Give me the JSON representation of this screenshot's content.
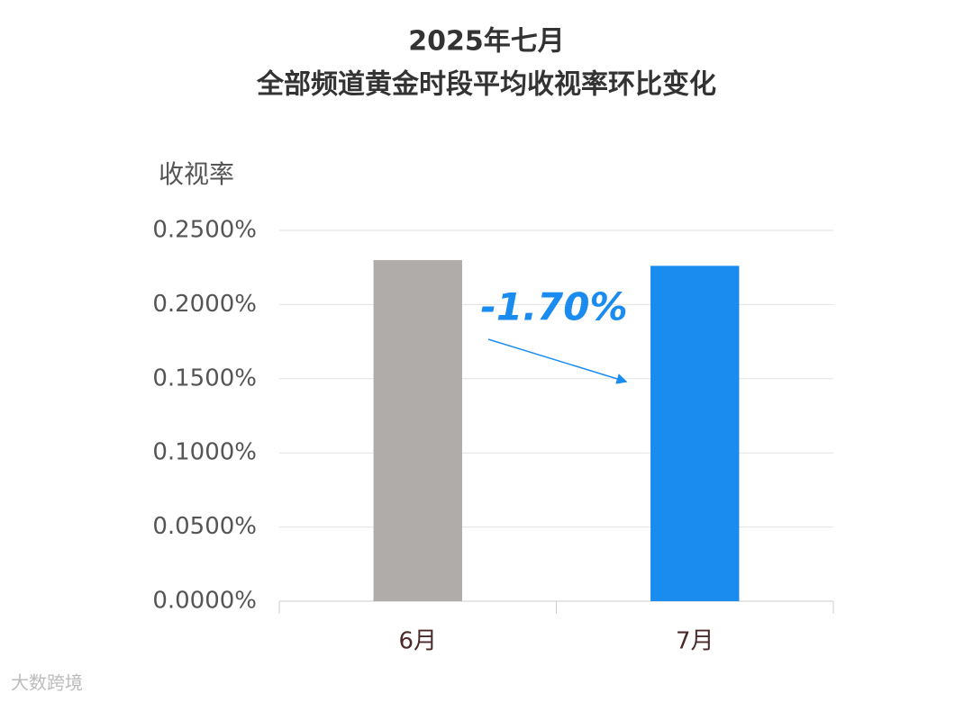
{
  "chart_data": {
    "type": "bar",
    "title": "2025年七月",
    "subtitle": "全部频道黄金时段平均收视率环比变化",
    "y_label": "收视率",
    "categories": [
      "6月",
      "7月"
    ],
    "values": [
      0.23,
      0.2261
    ],
    "colors": [
      "#b0acaa",
      "#1a8cf0"
    ],
    "ylim": [
      0,
      0.25
    ],
    "yticks": [
      {
        "value": 0,
        "label": "0.0000%"
      },
      {
        "value": 0.05,
        "label": "0.0500%"
      },
      {
        "value": 0.1,
        "label": "0.1000%"
      },
      {
        "value": 0.15,
        "label": "0.1500%"
      },
      {
        "value": 0.2,
        "label": "0.2000%"
      },
      {
        "value": 0.25,
        "label": "0.2500%"
      }
    ],
    "grid": true,
    "annotation": "-1.70%",
    "watermark": "大数跨境"
  }
}
